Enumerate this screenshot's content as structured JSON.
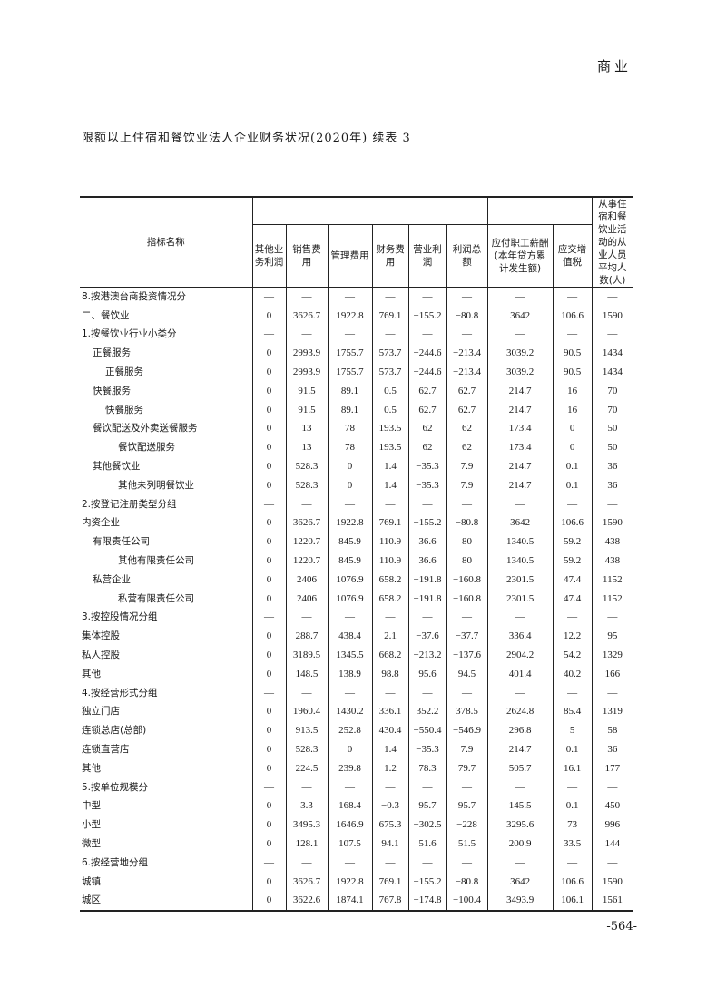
{
  "header": {
    "section": "商业"
  },
  "title": "限额以上住宿和餐饮业法人企业财务状况(2020年) 续表 3",
  "page_number": "-564-",
  "table": {
    "label_header": "指标名称",
    "columns": [
      "其他业务利润",
      "销售费用",
      "管理费用",
      "财务费用",
      "营业利润",
      "利润总额",
      "应付职工薪酬(本年贷方累计发生额)",
      "应交增值税",
      "从事住宿和餐饮业活动的从业人员平均人数(人)"
    ],
    "rows": [
      {
        "label": "8.按港澳台商投资情况分",
        "indent": 0,
        "values": [
          "—",
          "—",
          "—",
          "—",
          "—",
          "—",
          "—",
          "—",
          "—"
        ]
      },
      {
        "label": "二、餐饮业",
        "indent": 0,
        "values": [
          "0",
          "3626.7",
          "1922.8",
          "769.1",
          "−155.2",
          "−80.8",
          "3642",
          "106.6",
          "1590"
        ]
      },
      {
        "label": "1.按餐饮业行业小类分",
        "indent": 0,
        "values": [
          "—",
          "—",
          "—",
          "—",
          "—",
          "—",
          "—",
          "—",
          "—"
        ]
      },
      {
        "label": "正餐服务",
        "indent": 1,
        "values": [
          "0",
          "2993.9",
          "1755.7",
          "573.7",
          "−244.6",
          "−213.4",
          "3039.2",
          "90.5",
          "1434"
        ]
      },
      {
        "label": "正餐服务",
        "indent": 2,
        "values": [
          "0",
          "2993.9",
          "1755.7",
          "573.7",
          "−244.6",
          "−213.4",
          "3039.2",
          "90.5",
          "1434"
        ]
      },
      {
        "label": "快餐服务",
        "indent": 1,
        "values": [
          "0",
          "91.5",
          "89.1",
          "0.5",
          "62.7",
          "62.7",
          "214.7",
          "16",
          "70"
        ]
      },
      {
        "label": "快餐服务",
        "indent": 2,
        "values": [
          "0",
          "91.5",
          "89.1",
          "0.5",
          "62.7",
          "62.7",
          "214.7",
          "16",
          "70"
        ]
      },
      {
        "label": "餐饮配送及外卖送餐服务",
        "indent": 1,
        "values": [
          "0",
          "13",
          "78",
          "193.5",
          "62",
          "62",
          "173.4",
          "0",
          "50"
        ]
      },
      {
        "label": "餐饮配送服务",
        "indent": 3,
        "values": [
          "0",
          "13",
          "78",
          "193.5",
          "62",
          "62",
          "173.4",
          "0",
          "50"
        ]
      },
      {
        "label": "其他餐饮业",
        "indent": 1,
        "values": [
          "0",
          "528.3",
          "0",
          "1.4",
          "−35.3",
          "7.9",
          "214.7",
          "0.1",
          "36"
        ]
      },
      {
        "label": "其他未列明餐饮业",
        "indent": 3,
        "values": [
          "0",
          "528.3",
          "0",
          "1.4",
          "−35.3",
          "7.9",
          "214.7",
          "0.1",
          "36"
        ]
      },
      {
        "label": "2.按登记注册类型分组",
        "indent": 0,
        "values": [
          "—",
          "—",
          "—",
          "—",
          "—",
          "—",
          "—",
          "—",
          "—"
        ]
      },
      {
        "label": "内资企业",
        "indent": 0,
        "values": [
          "0",
          "3626.7",
          "1922.8",
          "769.1",
          "−155.2",
          "−80.8",
          "3642",
          "106.6",
          "1590"
        ]
      },
      {
        "label": "有限责任公司",
        "indent": 1,
        "values": [
          "0",
          "1220.7",
          "845.9",
          "110.9",
          "36.6",
          "80",
          "1340.5",
          "59.2",
          "438"
        ]
      },
      {
        "label": "其他有限责任公司",
        "indent": 3,
        "values": [
          "0",
          "1220.7",
          "845.9",
          "110.9",
          "36.6",
          "80",
          "1340.5",
          "59.2",
          "438"
        ]
      },
      {
        "label": "私营企业",
        "indent": 1,
        "values": [
          "0",
          "2406",
          "1076.9",
          "658.2",
          "−191.8",
          "−160.8",
          "2301.5",
          "47.4",
          "1152"
        ]
      },
      {
        "label": "私营有限责任公司",
        "indent": 3,
        "values": [
          "0",
          "2406",
          "1076.9",
          "658.2",
          "−191.8",
          "−160.8",
          "2301.5",
          "47.4",
          "1152"
        ]
      },
      {
        "label": "3.按控股情况分组",
        "indent": 0,
        "values": [
          "—",
          "—",
          "—",
          "—",
          "—",
          "—",
          "—",
          "—",
          "—"
        ]
      },
      {
        "label": "集体控股",
        "indent": 0,
        "values": [
          "0",
          "288.7",
          "438.4",
          "2.1",
          "−37.6",
          "−37.7",
          "336.4",
          "12.2",
          "95"
        ]
      },
      {
        "label": "私人控股",
        "indent": 0,
        "values": [
          "0",
          "3189.5",
          "1345.5",
          "668.2",
          "−213.2",
          "−137.6",
          "2904.2",
          "54.2",
          "1329"
        ]
      },
      {
        "label": "其他",
        "indent": 0,
        "values": [
          "0",
          "148.5",
          "138.9",
          "98.8",
          "95.6",
          "94.5",
          "401.4",
          "40.2",
          "166"
        ]
      },
      {
        "label": "4.按经营形式分组",
        "indent": 0,
        "values": [
          "—",
          "—",
          "—",
          "—",
          "—",
          "—",
          "—",
          "—",
          "—"
        ]
      },
      {
        "label": "独立门店",
        "indent": 0,
        "values": [
          "0",
          "1960.4",
          "1430.2",
          "336.1",
          "352.2",
          "378.5",
          "2624.8",
          "85.4",
          "1319"
        ]
      },
      {
        "label": "连锁总店(总部)",
        "indent": 0,
        "values": [
          "0",
          "913.5",
          "252.8",
          "430.4",
          "−550.4",
          "−546.9",
          "296.8",
          "5",
          "58"
        ]
      },
      {
        "label": "连锁直营店",
        "indent": 0,
        "values": [
          "0",
          "528.3",
          "0",
          "1.4",
          "−35.3",
          "7.9",
          "214.7",
          "0.1",
          "36"
        ]
      },
      {
        "label": "其他",
        "indent": 0,
        "values": [
          "0",
          "224.5",
          "239.8",
          "1.2",
          "78.3",
          "79.7",
          "505.7",
          "16.1",
          "177"
        ]
      },
      {
        "label": "5.按单位规模分",
        "indent": 0,
        "values": [
          "—",
          "—",
          "—",
          "—",
          "—",
          "—",
          "—",
          "—",
          "—"
        ]
      },
      {
        "label": "中型",
        "indent": 0,
        "values": [
          "0",
          "3.3",
          "168.4",
          "−0.3",
          "95.7",
          "95.7",
          "145.5",
          "0.1",
          "450"
        ]
      },
      {
        "label": "小型",
        "indent": 0,
        "values": [
          "0",
          "3495.3",
          "1646.9",
          "675.3",
          "−302.5",
          "−228",
          "3295.6",
          "73",
          "996"
        ]
      },
      {
        "label": "微型",
        "indent": 0,
        "values": [
          "0",
          "128.1",
          "107.5",
          "94.1",
          "51.6",
          "51.5",
          "200.9",
          "33.5",
          "144"
        ]
      },
      {
        "label": "6.按经营地分组",
        "indent": 0,
        "values": [
          "—",
          "—",
          "—",
          "—",
          "—",
          "—",
          "—",
          "—",
          "—"
        ]
      },
      {
        "label": "城镇",
        "indent": 0,
        "values": [
          "0",
          "3626.7",
          "1922.8",
          "769.1",
          "−155.2",
          "−80.8",
          "3642",
          "106.6",
          "1590"
        ]
      },
      {
        "label": "城区",
        "indent": 0,
        "values": [
          "0",
          "3622.6",
          "1874.1",
          "767.8",
          "−174.8",
          "−100.4",
          "3493.9",
          "106.1",
          "1561"
        ]
      }
    ]
  }
}
